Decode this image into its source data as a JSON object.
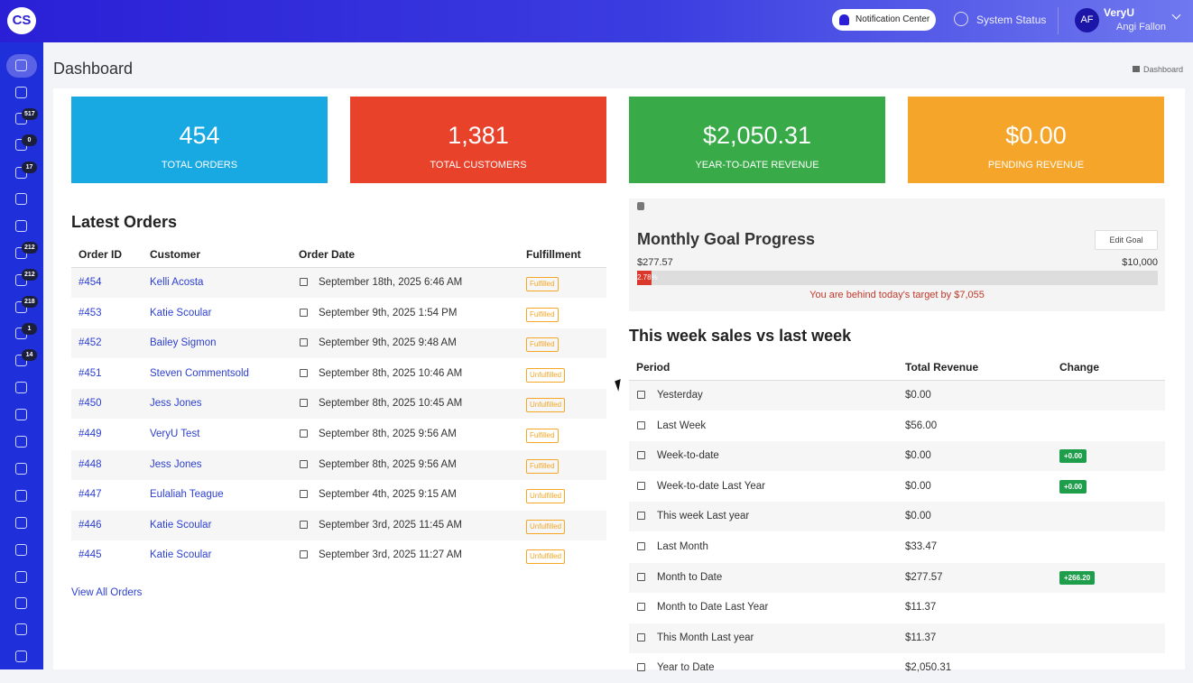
{
  "header": {
    "logo": "CS",
    "notification": "Notification Center",
    "system_status": "System Status",
    "user_initials": "AF",
    "user_name": "VeryU",
    "user_sub": "Angi Fallon"
  },
  "sidebar": {
    "badges": [
      "517",
      "0",
      "17",
      "212",
      "212",
      "218",
      "1",
      "14"
    ]
  },
  "page": {
    "title": "Dashboard",
    "breadcrumb": "Dashboard"
  },
  "stats": [
    {
      "value": "454",
      "label": "TOTAL ORDERS",
      "color": "#18a9e2"
    },
    {
      "value": "1,381",
      "label": "TOTAL CUSTOMERS",
      "color": "#e8422b"
    },
    {
      "value": "$2,050.31",
      "label": "YEAR-TO-DATE REVENUE",
      "color": "#38ab48"
    },
    {
      "value": "$0.00",
      "label": "PENDING REVENUE",
      "color": "#f4a52a"
    }
  ],
  "orders": {
    "title": "Latest Orders",
    "columns": [
      "Order ID",
      "Customer",
      "Order Date",
      "Fulfillment"
    ],
    "rows": [
      [
        "#454",
        "Kelli Acosta",
        "September 18th, 2025 6:46 AM",
        "Fulfilled"
      ],
      [
        "#453",
        "Katie Scoular",
        "September 9th, 2025 1:54 PM",
        "Fulfilled"
      ],
      [
        "#452",
        "Bailey Sigmon",
        "September 9th, 2025 9:48 AM",
        "Fulfilled"
      ],
      [
        "#451",
        "Steven Commentsold",
        "September 8th, 2025 10:46 AM",
        "Unfulfilled"
      ],
      [
        "#450",
        "Jess Jones",
        "September 8th, 2025 10:45 AM",
        "Unfulfilled"
      ],
      [
        "#449",
        "VeryU Test",
        "September 8th, 2025 9:56 AM",
        "Fulfilled"
      ],
      [
        "#448",
        "Jess Jones",
        "September 8th, 2025 9:56 AM",
        "Fulfilled"
      ],
      [
        "#447",
        "Eulaliah Teague",
        "September 4th, 2025 9:15 AM",
        "Unfulfilled"
      ],
      [
        "#446",
        "Katie Scoular",
        "September 3rd, 2025 11:45 AM",
        "Unfulfilled"
      ],
      [
        "#445",
        "Katie Scoular",
        "September 3rd, 2025 11:27 AM",
        "Unfulfilled"
      ]
    ],
    "link": "View All Orders"
  },
  "goal": {
    "title": "Monthly Goal Progress",
    "button": "Edit Goal",
    "current": "$277.57",
    "target": "$10,000",
    "progress": 2.78,
    "progress_label": "2.78%",
    "message": "You are behind today's target by $7,055"
  },
  "weekly": {
    "title": "This week sales vs last week",
    "columns": [
      "Period",
      "Total Revenue",
      "Change"
    ],
    "rows": [
      {
        "period": "Yesterday",
        "revenue": "$0.00"
      },
      {
        "period": "Last Week",
        "revenue": "$56.00"
      },
      {
        "period": "Week-to-date",
        "revenue": "$0.00",
        "change": "+0.00"
      },
      {
        "period": "Week-to-date Last Year",
        "revenue": "$0.00",
        "change": "+0.00"
      },
      {
        "period": "This week Last year",
        "revenue": "$0.00"
      },
      {
        "period": "Last Month",
        "revenue": "$33.47"
      },
      {
        "period": "Month to Date",
        "revenue": "$277.57",
        "change": "+266.20"
      },
      {
        "period": "Month to Date Last Year",
        "revenue": "$11.37"
      },
      {
        "period": "This Month Last year",
        "revenue": "$11.37"
      },
      {
        "period": "Year to Date",
        "revenue": "$2,050.31"
      }
    ]
  }
}
